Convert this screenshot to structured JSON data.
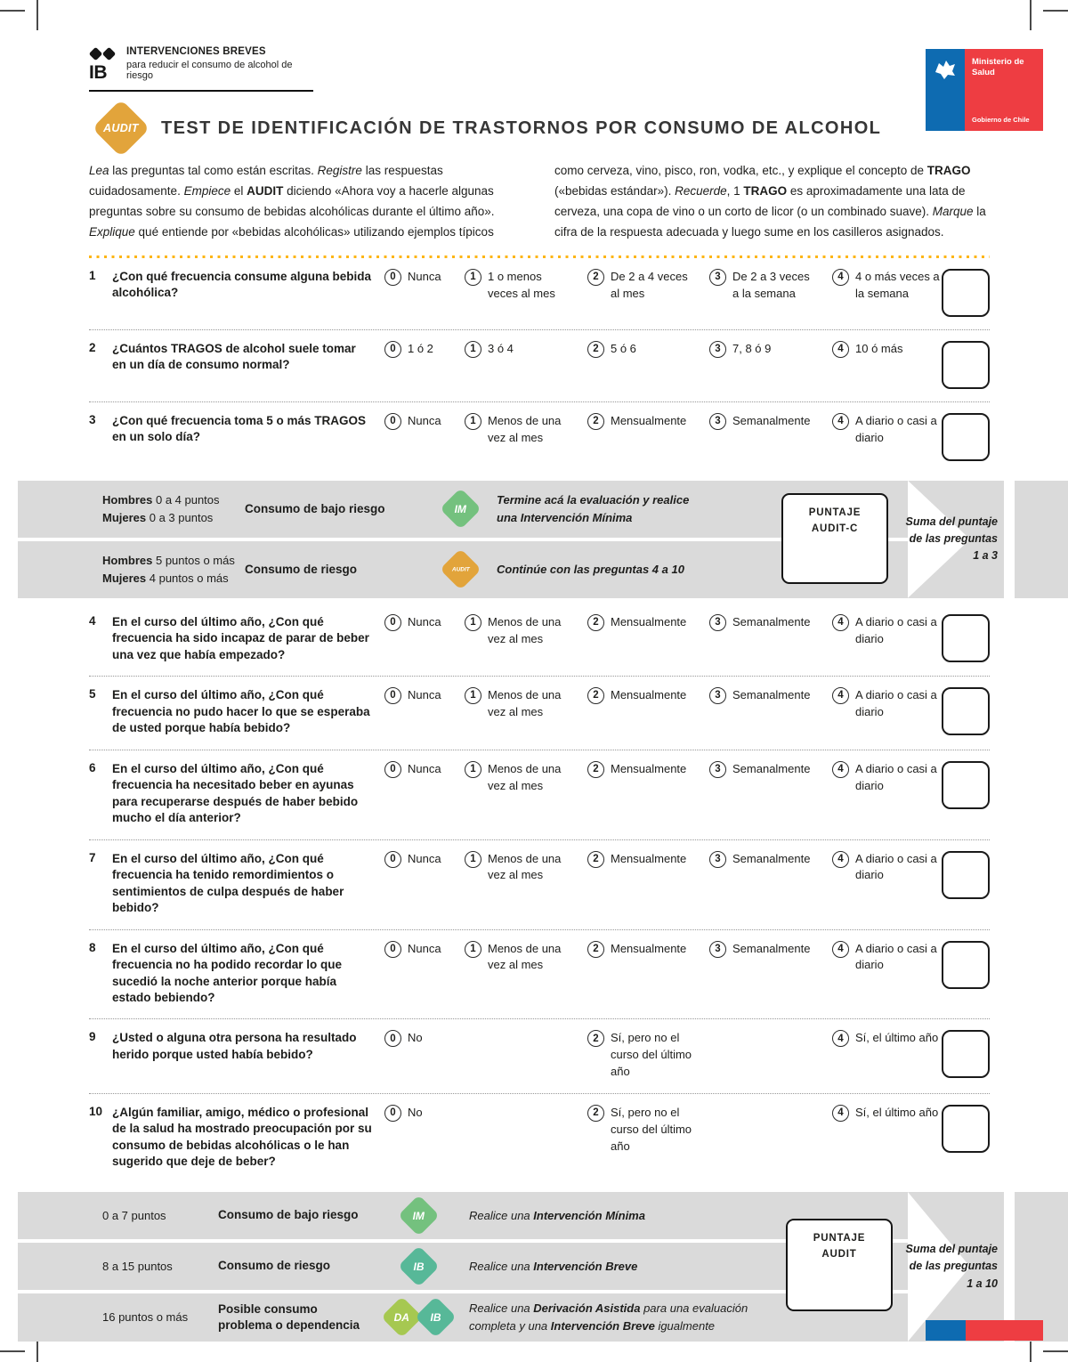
{
  "colors": {
    "accent_yellow": "#FDB515",
    "badge_amber": "#E2A43B",
    "badge_green": "#74C17E",
    "badge_teal": "#57B898",
    "badge_lime": "#A6C851",
    "flag_blue": "#0E6BB1",
    "flag_red": "#EE3D42",
    "band_gray": "#DADADA"
  },
  "header": {
    "brand": {
      "title": "INTERVENCIONES BREVES",
      "subtitle": "para reducir el consumo de alcohol de riesgo",
      "icon_label": "IB"
    },
    "ministry": {
      "name_html": "Ministerio de<br>Salud",
      "footer": "Gobierno de Chile"
    },
    "badge_label": "AUDIT",
    "title": "TEST DE IDENTIFICACIÓN DE TRASTORNOS POR CONSUMO DE ALCOHOL"
  },
  "intro": {
    "left_html": "<em>Lea</em> las preguntas tal como están escritas. <em>Registre</em> las respuestas cuidadosamente. <em>Empiece</em> el <strong>AUDIT</strong> diciendo «Ahora voy a hacerle algunas preguntas sobre su consumo de bebidas alcohólicas durante el último año». <em>Explique</em> qué entiende por «bebidas alcohólicas» utilizando ejemplos típicos",
    "right_html": "como cerveza, vino, pisco, ron, vodka, etc., y explique el concepto de <strong>TRAGO</strong> («bebidas estándar»). <em>Recuerde</em>, 1 <strong>TRAGO</strong> es aproximadamente una lata de cerveza, una copa de vino o un corto de licor (o un combinado suave). <em>Marque</em> la cifra de la respuesta adecuada y luego sume en los casilleros asignados."
  },
  "questions": [
    {
      "num": "1",
      "text": "¿Con qué frecuencia consume alguna bebida alcohólica?",
      "options": [
        {
          "value": "0",
          "label": "Nunca"
        },
        {
          "value": "1",
          "label": "1 o menos veces al mes"
        },
        {
          "value": "2",
          "label": "De 2 a 4 veces al mes"
        },
        {
          "value": "3",
          "label": "De 2 a 3 veces a la semana"
        },
        {
          "value": "4",
          "label": "4 o más veces a la semana"
        }
      ]
    },
    {
      "num": "2",
      "text": "¿Cuántos TRAGOS de alcohol suele tomar en un día de consumo normal?",
      "options": [
        {
          "value": "0",
          "label": "1 ó 2"
        },
        {
          "value": "1",
          "label": "3 ó 4"
        },
        {
          "value": "2",
          "label": "5 ó 6"
        },
        {
          "value": "3",
          "label": "7, 8 ó 9"
        },
        {
          "value": "4",
          "label": "10 ó más"
        }
      ]
    },
    {
      "num": "3",
      "text": "¿Con qué frecuencia toma 5 o más TRAGOS en un solo día?",
      "options": [
        {
          "value": "0",
          "label": "Nunca"
        },
        {
          "value": "1",
          "label": "Menos de una vez al mes"
        },
        {
          "value": "2",
          "label": "Mensualmente"
        },
        {
          "value": "3",
          "label": "Semanalmente"
        },
        {
          "value": "4",
          "label": "A diario o casi a diario"
        }
      ]
    },
    {
      "num": "4",
      "text": "En el curso del último año, ¿Con qué frecuencia ha sido incapaz de parar de beber una vez que había empezado?",
      "options": [
        {
          "value": "0",
          "label": "Nunca"
        },
        {
          "value": "1",
          "label": "Menos de una vez al mes"
        },
        {
          "value": "2",
          "label": "Mensualmente"
        },
        {
          "value": "3",
          "label": "Semanalmente"
        },
        {
          "value": "4",
          "label": "A diario o casi a diario"
        }
      ]
    },
    {
      "num": "5",
      "text": "En el curso del último año, ¿Con qué frecuencia no pudo hacer lo que se esperaba de usted porque había bebido?",
      "options": [
        {
          "value": "0",
          "label": "Nunca"
        },
        {
          "value": "1",
          "label": "Menos de una vez al mes"
        },
        {
          "value": "2",
          "label": "Mensualmente"
        },
        {
          "value": "3",
          "label": "Semanalmente"
        },
        {
          "value": "4",
          "label": "A diario o casi a diario"
        }
      ]
    },
    {
      "num": "6",
      "text": "En el curso del último año, ¿Con qué frecuencia ha necesitado beber en ayunas para recuperarse después de haber bebido mucho el día anterior?",
      "options": [
        {
          "value": "0",
          "label": "Nunca"
        },
        {
          "value": "1",
          "label": "Menos de una vez al mes"
        },
        {
          "value": "2",
          "label": "Mensualmente"
        },
        {
          "value": "3",
          "label": "Semanalmente"
        },
        {
          "value": "4",
          "label": "A diario o casi a diario"
        }
      ]
    },
    {
      "num": "7",
      "text": "En el curso del último año, ¿Con qué frecuencia ha tenido remordimientos o sentimientos de culpa después de haber bebido?",
      "options": [
        {
          "value": "0",
          "label": "Nunca"
        },
        {
          "value": "1",
          "label": "Menos de una vez al mes"
        },
        {
          "value": "2",
          "label": "Mensualmente"
        },
        {
          "value": "3",
          "label": "Semanalmente"
        },
        {
          "value": "4",
          "label": "A diario o casi a diario"
        }
      ]
    },
    {
      "num": "8",
      "text": "En el curso del último año, ¿Con qué frecuencia no ha podido recordar lo que sucedió la noche anterior porque había estado bebiendo?",
      "options": [
        {
          "value": "0",
          "label": "Nunca"
        },
        {
          "value": "1",
          "label": "Menos de una vez al mes"
        },
        {
          "value": "2",
          "label": "Mensualmente"
        },
        {
          "value": "3",
          "label": "Semanalmente"
        },
        {
          "value": "4",
          "label": "A diario o casi a diario"
        }
      ]
    },
    {
      "num": "9",
      "text": "¿Usted o alguna otra persona ha resultado herido porque usted había bebido?",
      "options": [
        {
          "value": "0",
          "label": "No",
          "col": 0
        },
        {
          "value": "2",
          "label": "Sí, pero no el curso del último año",
          "col": 2
        },
        {
          "value": "4",
          "label": "Sí, el último año",
          "col": 4
        }
      ]
    },
    {
      "num": "10",
      "text": "¿Algún familiar, amigo, médico o profesional de la salud ha mostrado preocupación por su consumo de bebidas alcohólicas o le han sugerido que deje de beber?",
      "options": [
        {
          "value": "0",
          "label": "No",
          "col": 0
        },
        {
          "value": "2",
          "label": "Sí, pero no el curso del último año",
          "col": 2
        },
        {
          "value": "4",
          "label": "Sí, el último año",
          "col": 4
        }
      ]
    }
  ],
  "auditc_band": {
    "rows": [
      {
        "points_html": "<strong>Hombres</strong> 0 a 4 puntos<br><strong>Mujeres</strong> 0 a 3 puntos",
        "risk": "Consumo de bajo riesgo",
        "badges": [
          {
            "label": "IM",
            "color": "#74C17E"
          }
        ],
        "instruction_html": "Termine acá la evaluación y realice una Intervención Mínima"
      },
      {
        "points_html": "<strong>Hombres</strong> 5 puntos o más<br><strong>Mujeres</strong> 4 puntos o más",
        "risk": "Consumo de riesgo",
        "badges": [
          {
            "label": "AUDIT",
            "color": "#E2A43B"
          }
        ],
        "instruction_html": "Continúe con las preguntas 4 a 10"
      }
    ],
    "score_box_line1": "PUNTAJE",
    "score_box_line2": "AUDIT-C",
    "note": "Suma del puntaje de las preguntas 1 a 3"
  },
  "audit_band": {
    "rows": [
      {
        "points": "0 a 7 puntos",
        "risk": "Consumo de bajo riesgo",
        "badges": [
          {
            "label": "IM",
            "color": "#74C17E"
          }
        ],
        "instruction_html": "Realice una <strong>Intervención Mínima</strong>"
      },
      {
        "points": "8 a 15 puntos",
        "risk": "Consumo de riesgo",
        "badges": [
          {
            "label": "IB",
            "color": "#57B898"
          }
        ],
        "instruction_html": "Realice una <strong>Intervención Breve</strong>"
      },
      {
        "points": "16 puntos o más",
        "risk": "Posible consumo problema o dependencia",
        "badges": [
          {
            "label": "DA",
            "color": "#A6C851"
          },
          {
            "label": "IB",
            "color": "#57B898"
          }
        ],
        "instruction_html": "Realice una <strong>Derivación Asistida</strong> para una evaluación completa y una <strong>Intervención Breve</strong> igualmente"
      }
    ],
    "score_box_line1": "PUNTAJE",
    "score_box_line2": "AUDIT",
    "note": "Suma del puntaje de las preguntas 1 a 10"
  }
}
